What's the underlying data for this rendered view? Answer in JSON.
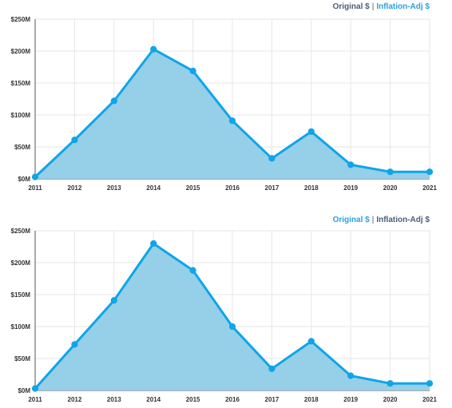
{
  "colors": {
    "line": "#0ea5e9",
    "area": "#95cfe8",
    "grid": "#e6e6e6",
    "axis": "#555555",
    "toggle_active": "#4a5d7a",
    "toggle_link": "#2aa0e0"
  },
  "chart_data": [
    {
      "type": "area",
      "toggle": {
        "original_label": "Original $",
        "separator": "|",
        "adjusted_label": "Inflation-Adj $",
        "active": "original"
      },
      "x": [
        "2011",
        "2012",
        "2013",
        "2014",
        "2015",
        "2016",
        "2017",
        "2018",
        "2019",
        "2020",
        "2021"
      ],
      "series": [
        {
          "values": [
            3,
            61,
            122,
            203,
            169,
            91,
            32,
            74,
            22,
            11,
            11
          ]
        }
      ],
      "ylim": [
        0,
        250
      ],
      "yticks": [
        0,
        50,
        100,
        150,
        200,
        250
      ],
      "ytick_labels": [
        "$0M",
        "$50M",
        "$100M",
        "$150M",
        "$200M",
        "$250M"
      ],
      "grid": true,
      "title": "",
      "xlabel": "",
      "ylabel": ""
    },
    {
      "type": "area",
      "toggle": {
        "original_label": "Original $",
        "separator": "|",
        "adjusted_label": "Inflation-Adj $",
        "active": "adjusted"
      },
      "x": [
        "2011",
        "2012",
        "2013",
        "2014",
        "2015",
        "2016",
        "2017",
        "2018",
        "2019",
        "2020",
        "2021"
      ],
      "series": [
        {
          "values": [
            3,
            72,
            141,
            230,
            188,
            100,
            34,
            77,
            23,
            11,
            11
          ]
        }
      ],
      "ylim": [
        0,
        250
      ],
      "yticks": [
        0,
        50,
        100,
        150,
        200,
        250
      ],
      "ytick_labels": [
        "$0M",
        "$50M",
        "$100M",
        "$150M",
        "$200M",
        "$250M"
      ],
      "grid": true,
      "title": "",
      "xlabel": "",
      "ylabel": ""
    }
  ]
}
